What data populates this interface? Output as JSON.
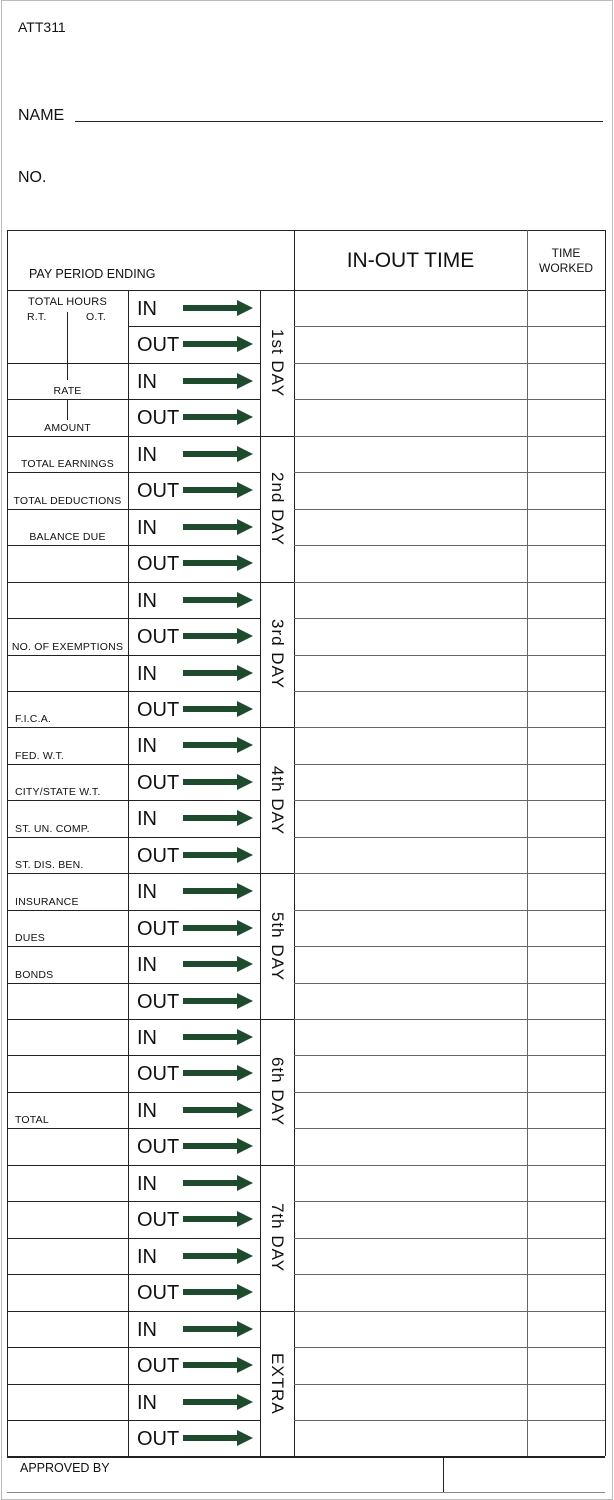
{
  "form_code": "ATT311",
  "name_label": "NAME",
  "no_label": "NO.",
  "header": {
    "pay_period": "PAY PERIOD ENDING",
    "in_out_time": "IN-OUT TIME",
    "time_worked_1": "TIME",
    "time_worked_2": "WORKED"
  },
  "total_hours": {
    "title": "TOTAL HOURS",
    "rt": "R.T.",
    "ot": "O.T."
  },
  "left_labels": [
    "",
    "",
    "RATE",
    "AMOUNT",
    "TOTAL EARNINGS",
    "TOTAL DEDUCTIONS",
    "BALANCE DUE",
    "",
    "",
    "NO. OF EXEMPTIONS",
    "",
    "F.I.C.A.",
    "FED. W.T.",
    "CITY/STATE W.T.",
    "ST. UN. COMP.",
    "ST. DIS. BEN.",
    "INSURANCE",
    "DUES",
    "BONDS",
    "",
    "",
    "",
    "TOTAL",
    "",
    "",
    "",
    "",
    "",
    "",
    "",
    "",
    ""
  ],
  "punch_labels": [
    "IN",
    "OUT",
    "IN",
    "OUT"
  ],
  "days": [
    "1st DAY",
    "2nd DAY",
    "3rd DAY",
    "4th DAY",
    "5th DAY",
    "6th DAY",
    "7th DAY",
    "EXTRA"
  ],
  "approved_by": "APPROVED BY",
  "colors": {
    "arrow": "#1e4a2e",
    "lines": "#222222"
  },
  "icons": {
    "arrow": "right-arrow-icon"
  }
}
